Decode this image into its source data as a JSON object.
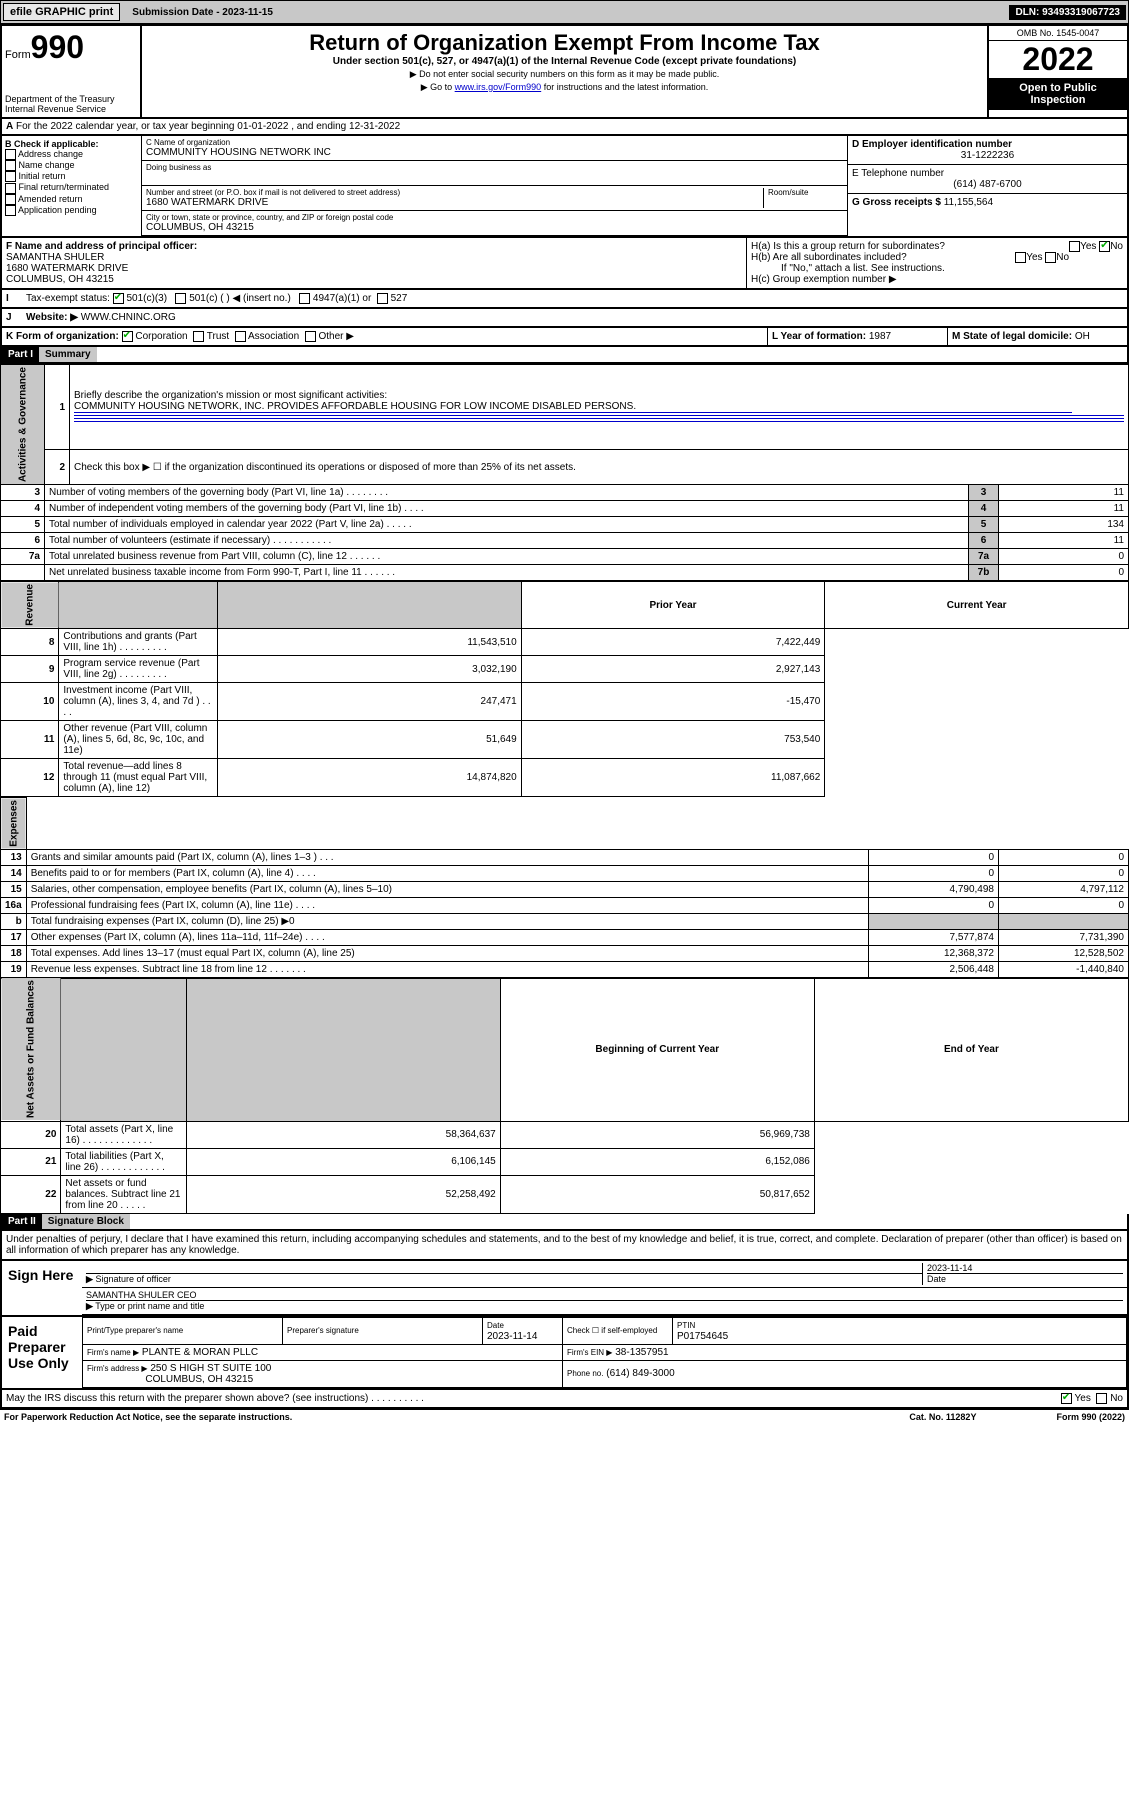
{
  "topbar": {
    "efile": "efile GRAPHIC print",
    "submission": "Submission Date - 2023-11-15",
    "dln": "DLN: 93493319067723"
  },
  "header": {
    "form_label": "Form",
    "form_num": "990",
    "dept": "Department of the Treasury\nInternal Revenue Service",
    "title": "Return of Organization Exempt From Income Tax",
    "subtitle": "Under section 501(c), 527, or 4947(a)(1) of the Internal Revenue Code (except private foundations)",
    "note1": "▶ Do not enter social security numbers on this form as it may be made public.",
    "note2_a": "▶ Go to ",
    "note2_link": "www.irs.gov/Form990",
    "note2_b": " for instructions and the latest information.",
    "omb": "OMB No. 1545-0047",
    "year": "2022",
    "inspection": "Open to Public Inspection"
  },
  "a_line": "For the 2022 calendar year, or tax year beginning 01-01-2022    , and ending 12-31-2022",
  "b": {
    "header": "B Check if applicable:",
    "opts": [
      "Address change",
      "Name change",
      "Initial return",
      "Final return/terminated",
      "Amended return",
      "Application pending"
    ]
  },
  "c": {
    "label": "C Name of organization",
    "name": "COMMUNITY HOUSING NETWORK INC",
    "dba": "Doing business as",
    "street_label": "Number and street (or P.O. box if mail is not delivered to street address)",
    "room": "Room/suite",
    "street": "1680 WATERMARK DRIVE",
    "city_label": "City or town, state or province, country, and ZIP or foreign postal code",
    "city": "COLUMBUS, OH  43215"
  },
  "d": {
    "label": "D Employer identification number",
    "val": "31-1222236"
  },
  "e": {
    "label": "E Telephone number",
    "val": "(614) 487-6700"
  },
  "g": {
    "label": "G Gross receipts $",
    "val": "11,155,564"
  },
  "f": {
    "label": "F Name and address of principal officer:",
    "name": "SAMANTHA SHULER",
    "addr1": "1680 WATERMARK DRIVE",
    "addr2": "COLUMBUS, OH  43215"
  },
  "h": {
    "a": "H(a)  Is this a group return for subordinates?",
    "b": "H(b)  Are all subordinates included?",
    "b_note": "If \"No,\" attach a list. See instructions.",
    "c": "H(c)  Group exemption number ▶"
  },
  "i": {
    "label": "Tax-exempt status:",
    "opts": [
      "501(c)(3)",
      "501(c) (  ) ◀ (insert no.)",
      "4947(a)(1) or",
      "527"
    ]
  },
  "j": {
    "label": "Website: ▶",
    "val": "WWW.CHNINC.ORG"
  },
  "k": {
    "label": "K Form of organization:",
    "opts": [
      "Corporation",
      "Trust",
      "Association",
      "Other ▶"
    ]
  },
  "l": {
    "label": "L Year of formation:",
    "val": "1987"
  },
  "m": {
    "label": "M State of legal domicile:",
    "val": "OH"
  },
  "part1": {
    "hdr": "Part I",
    "title": "Summary",
    "q1": "Briefly describe the organization's mission or most significant activities:",
    "mission": "COMMUNITY HOUSING NETWORK, INC. PROVIDES AFFORDABLE HOUSING FOR LOW INCOME DISABLED PERSONS.",
    "q2": "Check this box ▶ ☐  if the organization discontinued its operations or disposed of more than 25% of its net assets.",
    "rows": [
      {
        "n": "3",
        "t": "Number of voting members of the governing body (Part VI, line 1a)  .   .   .   .   .   .   .   .",
        "c": "3",
        "v": "11"
      },
      {
        "n": "4",
        "t": "Number of independent voting members of the governing body (Part VI, line 1b)   .   .   .   .",
        "c": "4",
        "v": "11"
      },
      {
        "n": "5",
        "t": "Total number of individuals employed in calendar year 2022 (Part V, line 2a)  .   .   .   .   .",
        "c": "5",
        "v": "134"
      },
      {
        "n": "6",
        "t": "Total number of volunteers (estimate if necessary)   .   .   .   .   .   .   .   .   .   .   .",
        "c": "6",
        "v": "11"
      },
      {
        "n": "7a",
        "t": "Total unrelated business revenue from Part VIII, column (C), line 12   .   .   .   .   .   .",
        "c": "7a",
        "v": "0"
      },
      {
        "n": "",
        "t": "Net unrelated business taxable income from Form 990-T, Part I, line 11   .   .   .   .   .   .",
        "c": "7b",
        "v": "0"
      }
    ],
    "col_prior": "Prior Year",
    "col_current": "Current Year",
    "rev": [
      {
        "n": "8",
        "t": "Contributions and grants (Part VIII, line 1h)   .   .   .   .   .   .   .   .   .",
        "p": "11,543,510",
        "c": "7,422,449"
      },
      {
        "n": "9",
        "t": "Program service revenue (Part VIII, line 2g)   .   .   .   .   .   .   .   .   .",
        "p": "3,032,190",
        "c": "2,927,143"
      },
      {
        "n": "10",
        "t": "Investment income (Part VIII, column (A), lines 3, 4, and 7d )   .   .   .   .",
        "p": "247,471",
        "c": "-15,470"
      },
      {
        "n": "11",
        "t": "Other revenue (Part VIII, column (A), lines 5, 6d, 8c, 9c, 10c, and 11e)",
        "p": "51,649",
        "c": "753,540"
      },
      {
        "n": "12",
        "t": "Total revenue—add lines 8 through 11 (must equal Part VIII, column (A), line 12)",
        "p": "14,874,820",
        "c": "11,087,662"
      }
    ],
    "exp": [
      {
        "n": "13",
        "t": "Grants and similar amounts paid (Part IX, column (A), lines 1–3 )   .   .   .",
        "p": "0",
        "c": "0"
      },
      {
        "n": "14",
        "t": "Benefits paid to or for members (Part IX, column (A), line 4)   .   .   .   .",
        "p": "0",
        "c": "0"
      },
      {
        "n": "15",
        "t": "Salaries, other compensation, employee benefits (Part IX, column (A), lines 5–10)",
        "p": "4,790,498",
        "c": "4,797,112"
      },
      {
        "n": "16a",
        "t": "Professional fundraising fees (Part IX, column (A), line 11e)   .   .   .   .",
        "p": "0",
        "c": "0"
      },
      {
        "n": "b",
        "t": "Total fundraising expenses (Part IX, column (D), line 25) ▶0",
        "p": "",
        "c": "",
        "shade": true
      },
      {
        "n": "17",
        "t": "Other expenses (Part IX, column (A), lines 11a–11d, 11f–24e)   .   .   .   .",
        "p": "7,577,874",
        "c": "7,731,390"
      },
      {
        "n": "18",
        "t": "Total expenses. Add lines 13–17 (must equal Part IX, column (A), line 25)",
        "p": "12,368,372",
        "c": "12,528,502"
      },
      {
        "n": "19",
        "t": "Revenue less expenses. Subtract line 18 from line 12   .   .   .   .   .   .   .",
        "p": "2,506,448",
        "c": "-1,440,840"
      }
    ],
    "col_begin": "Beginning of Current Year",
    "col_end": "End of Year",
    "net": [
      {
        "n": "20",
        "t": "Total assets (Part X, line 16)   .   .   .   .   .   .   .   .   .   .   .   .   .",
        "p": "58,364,637",
        "c": "56,969,738"
      },
      {
        "n": "21",
        "t": "Total liabilities (Part X, line 26)   .   .   .   .   .   .   .   .   .   .   .   .",
        "p": "6,106,145",
        "c": "6,152,086"
      },
      {
        "n": "22",
        "t": "Net assets or fund balances. Subtract line 21 from line 20   .   .   .   .   .",
        "p": "52,258,492",
        "c": "50,817,652"
      }
    ],
    "side_labels": {
      "gov": "Activities & Governance",
      "rev": "Revenue",
      "exp": "Expenses",
      "net": "Net Assets or\nFund Balances"
    }
  },
  "part2": {
    "hdr": "Part II",
    "title": "Signature Block",
    "decl": "Under penalties of perjury, I declare that I have examined this return, including accompanying schedules and statements, and to the best of my knowledge and belief, it is true, correct, and complete. Declaration of preparer (other than officer) is based on all information of which preparer has any knowledge.",
    "sign_here": "Sign Here",
    "sig_officer": "Signature of officer",
    "sig_date": "2023-11-14",
    "date_label": "Date",
    "officer_name": "SAMANTHA SHULER  CEO",
    "officer_label": "Type or print name and title",
    "paid": "Paid Preparer Use Only",
    "prep_name_label": "Print/Type preparer's name",
    "prep_sig_label": "Preparer's signature",
    "prep_date_label": "Date",
    "prep_date": "2023-11-14",
    "check_label": "Check ☐ if self-employed",
    "ptin_label": "PTIN",
    "ptin": "P01754645",
    "firm_name_label": "Firm's name     ▶",
    "firm_name": "PLANTE & MORAN PLLC",
    "firm_ein_label": "Firm's EIN ▶",
    "firm_ein": "38-1357951",
    "firm_addr_label": "Firm's address ▶",
    "firm_addr": "250 S HIGH ST SUITE 100",
    "firm_city": "COLUMBUS, OH  43215",
    "phone_label": "Phone no.",
    "phone": "(614) 849-3000",
    "discuss": "May the IRS discuss this return with the preparer shown above? (see instructions)   .   .   .   .   .   .   .   .   .   ."
  },
  "footer": {
    "left": "For Paperwork Reduction Act Notice, see the separate instructions.",
    "mid": "Cat. No. 11282Y",
    "right": "Form 990 (2022)"
  },
  "yesno": {
    "yes": "Yes",
    "no": "No"
  }
}
